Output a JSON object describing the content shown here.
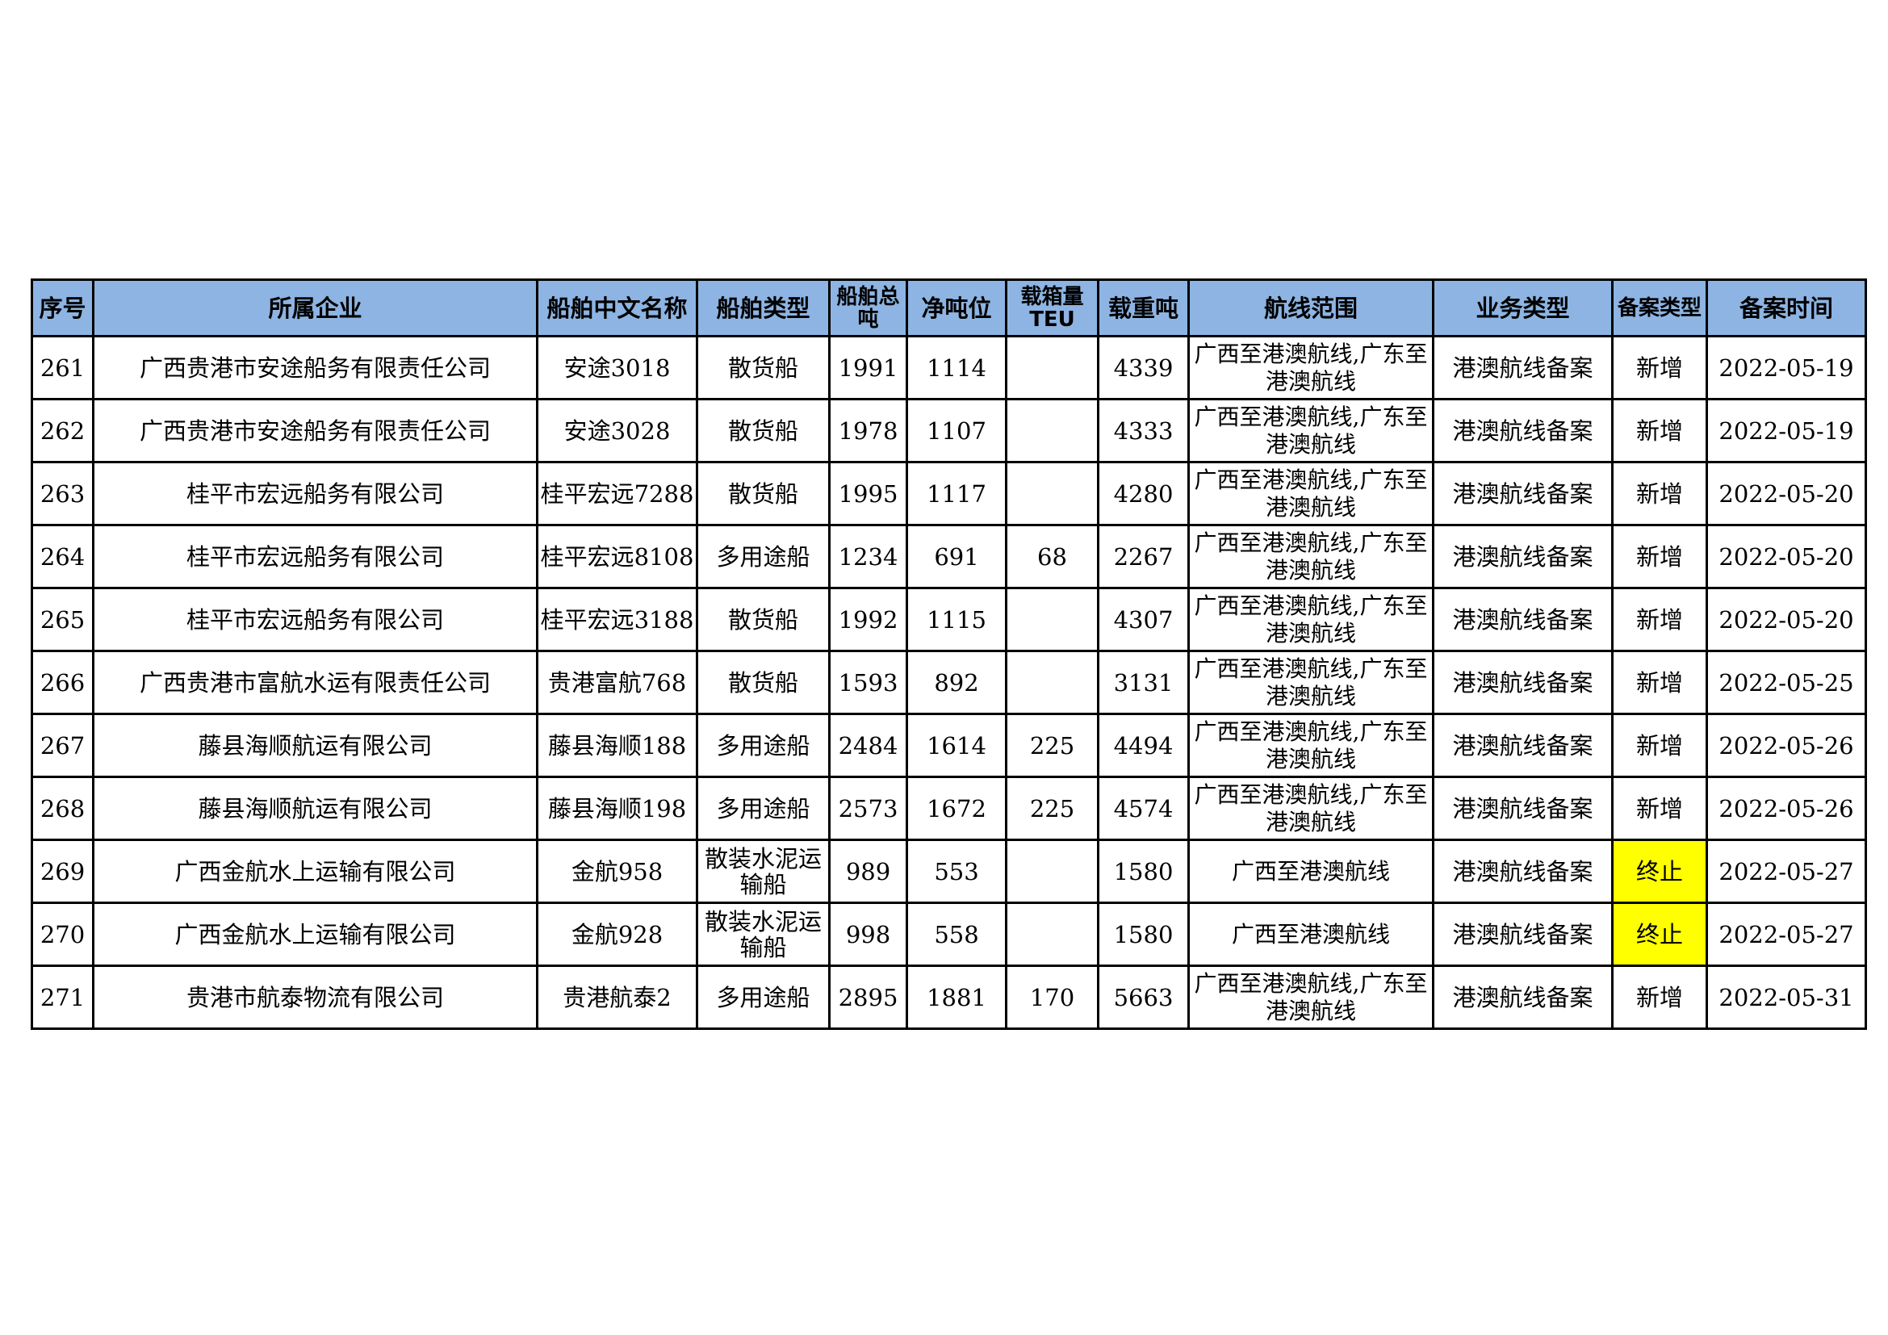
{
  "table": {
    "headers": [
      "序号",
      "所属企业",
      "船舶中文名称",
      "船舶类型",
      "船舶总吨",
      "净吨位",
      "载箱量TEU",
      "载重吨",
      "航线范围",
      "业务类型",
      "备案类型",
      "备案时间"
    ],
    "highlight_color": "#ffff00",
    "header_color": "#8db4e2",
    "rows": [
      {
        "no": "261",
        "company": "广西贵港市安途船务有限责任公司",
        "ship": "安途3018",
        "type": "散货船",
        "gross": "1991",
        "net": "1114",
        "teu": "",
        "dwt": "4339",
        "route": "广西至港澳航线,广东至港澳航线",
        "biz": "港澳航线备案",
        "filing": "新增",
        "date": "2022-05-19",
        "highlight": false
      },
      {
        "no": "262",
        "company": "广西贵港市安途船务有限责任公司",
        "ship": "安途3028",
        "type": "散货船",
        "gross": "1978",
        "net": "1107",
        "teu": "",
        "dwt": "4333",
        "route": "广西至港澳航线,广东至港澳航线",
        "biz": "港澳航线备案",
        "filing": "新增",
        "date": "2022-05-19",
        "highlight": false
      },
      {
        "no": "263",
        "company": "桂平市宏远船务有限公司",
        "ship": "桂平宏远7288",
        "type": "散货船",
        "gross": "1995",
        "net": "1117",
        "teu": "",
        "dwt": "4280",
        "route": "广西至港澳航线,广东至港澳航线",
        "biz": "港澳航线备案",
        "filing": "新增",
        "date": "2022-05-20",
        "highlight": false
      },
      {
        "no": "264",
        "company": "桂平市宏远船务有限公司",
        "ship": "桂平宏远8108",
        "type": "多用途船",
        "gross": "1234",
        "net": "691",
        "teu": "68",
        "dwt": "2267",
        "route": "广西至港澳航线,广东至港澳航线",
        "biz": "港澳航线备案",
        "filing": "新增",
        "date": "2022-05-20",
        "highlight": false
      },
      {
        "no": "265",
        "company": "桂平市宏远船务有限公司",
        "ship": "桂平宏远3188",
        "type": "散货船",
        "gross": "1992",
        "net": "1115",
        "teu": "",
        "dwt": "4307",
        "route": "广西至港澳航线,广东至港澳航线",
        "biz": "港澳航线备案",
        "filing": "新增",
        "date": "2022-05-20",
        "highlight": false
      },
      {
        "no": "266",
        "company": "广西贵港市富航水运有限责任公司",
        "ship": "贵港富航768",
        "type": "散货船",
        "gross": "1593",
        "net": "892",
        "teu": "",
        "dwt": "3131",
        "route": "广西至港澳航线,广东至港澳航线",
        "biz": "港澳航线备案",
        "filing": "新增",
        "date": "2022-05-25",
        "highlight": false
      },
      {
        "no": "267",
        "company": "藤县海顺航运有限公司",
        "ship": "藤县海顺188",
        "type": "多用途船",
        "gross": "2484",
        "net": "1614",
        "teu": "225",
        "dwt": "4494",
        "route": "广西至港澳航线,广东至港澳航线",
        "biz": "港澳航线备案",
        "filing": "新增",
        "date": "2022-05-26",
        "highlight": false
      },
      {
        "no": "268",
        "company": "藤县海顺航运有限公司",
        "ship": "藤县海顺198",
        "type": "多用途船",
        "gross": "2573",
        "net": "1672",
        "teu": "225",
        "dwt": "4574",
        "route": "广西至港澳航线,广东至港澳航线",
        "biz": "港澳航线备案",
        "filing": "新增",
        "date": "2022-05-26",
        "highlight": false
      },
      {
        "no": "269",
        "company": "广西金航水上运输有限公司",
        "ship": "金航958",
        "type": "散装水泥运输船",
        "gross": "989",
        "net": "553",
        "teu": "",
        "dwt": "1580",
        "route": "广西至港澳航线",
        "biz": "港澳航线备案",
        "filing": "终止",
        "date": "2022-05-27",
        "highlight": true
      },
      {
        "no": "270",
        "company": "广西金航水上运输有限公司",
        "ship": "金航928",
        "type": "散装水泥运输船",
        "gross": "998",
        "net": "558",
        "teu": "",
        "dwt": "1580",
        "route": "广西至港澳航线",
        "biz": "港澳航线备案",
        "filing": "终止",
        "date": "2022-05-27",
        "highlight": true
      },
      {
        "no": "271",
        "company": "贵港市航泰物流有限公司",
        "ship": "贵港航泰2",
        "type": "多用途船",
        "gross": "2895",
        "net": "1881",
        "teu": "170",
        "dwt": "5663",
        "route": "广西至港澳航线,广东至港澳航线",
        "biz": "港澳航线备案",
        "filing": "新增",
        "date": "2022-05-31",
        "highlight": false
      }
    ]
  }
}
